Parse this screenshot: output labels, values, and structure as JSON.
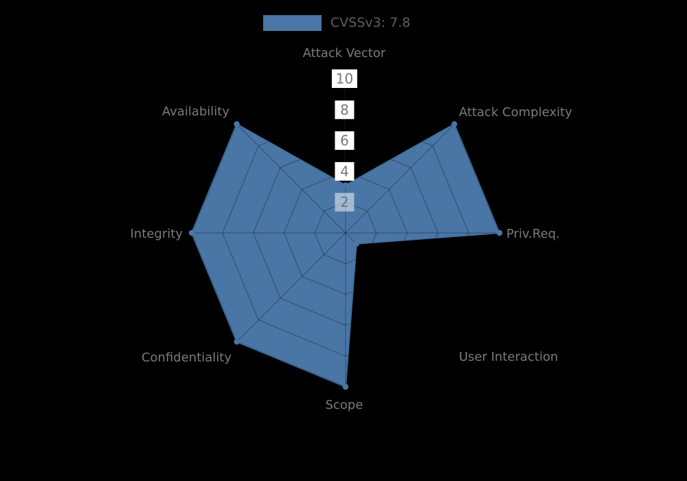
{
  "legend": {
    "label": "CVSSv3: 7.8"
  },
  "chart_data": {
    "type": "radar",
    "title": "CVSSv3: 7.8",
    "legend_entries": [
      {
        "label": "CVSSv3: 7.8",
        "swatch_color": "#4a76a6"
      }
    ],
    "categories": [
      "Attack Vector",
      "Attack Complexity",
      "Priv.Req.",
      "User Interaction",
      "Scope",
      "Confidentiality",
      "Integrity",
      "Availability"
    ],
    "series": [
      {
        "name": "CVSSv3: 7.8",
        "values": [
          3.1,
          10,
          10,
          1.0,
          10,
          10,
          10,
          10
        ]
      }
    ],
    "rlim": [
      0,
      10
    ],
    "rtick_labels_top_to_bottom": [
      "10",
      "8",
      "6",
      "4",
      "2"
    ],
    "grid": "spider-web, rings at 2/4/6/8/10, visible only inside filled area",
    "legend_position": "top-center",
    "colors": {
      "background": "#000000",
      "fill": "#4a76a6",
      "stroke": "#41709f",
      "marker": "#4a76a6",
      "grid_line": "rgba(0,0,0,0.28)",
      "category_label": "#7b7b7b",
      "tick_text": "#777777",
      "tick_text_inner": "#657585",
      "tick_box": "#ffffff",
      "tick_box_inner": "rgba(255,255,255,0.5)",
      "legend_text": "#5f5f5f"
    }
  }
}
